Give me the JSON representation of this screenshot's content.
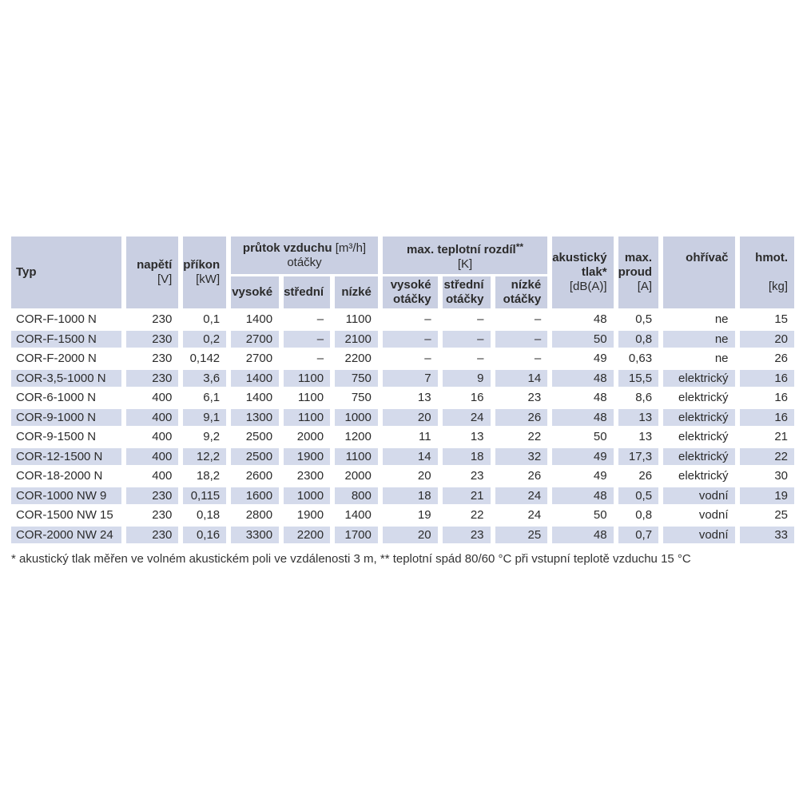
{
  "colors": {
    "header_bg": "#c9cfe2",
    "stripe_bg": "#d4daeb",
    "row_bg": "#ffffff",
    "text": "#2b2b2b"
  },
  "table": {
    "header": {
      "typ": "Typ",
      "napeti": {
        "l1": "napětí",
        "l2": "[V]"
      },
      "prikon": {
        "l1": "příkon",
        "l2": "[kW]"
      },
      "prutok": {
        "title": "průtok vzduchu",
        "unit": "[m³/h]",
        "sub": "otáčky"
      },
      "teplotni": {
        "title": "max. teplotní rozdíl",
        "stars": "**",
        "unit": "[K]"
      },
      "flow_speeds": {
        "high": "vysoké",
        "mid": "střední",
        "low": "nízké"
      },
      "temp_speeds": {
        "high": {
          "l1": "vysoké",
          "l2": "otáčky"
        },
        "mid": {
          "l1": "střední",
          "l2": "otáčky"
        },
        "low": {
          "l1": "nízké",
          "l2": "otáčky"
        }
      },
      "akusticky": {
        "l1": "akustický",
        "l2": "tlak*",
        "l3": "[dB(A)]"
      },
      "proud": {
        "l1": "max.",
        "l2": "proud",
        "l3": "[A]"
      },
      "ohrivac": "ohřívač",
      "hmot": {
        "l1": "hmot.",
        "l3": "[kg]"
      }
    },
    "rows": [
      {
        "typ": "COR-F-1000 N",
        "napeti": "230",
        "prikon": "0,1",
        "v": "1400",
        "s": "–",
        "n": "1100",
        "tv": "–",
        "ts": "–",
        "tn": "–",
        "db": "48",
        "a": "0,5",
        "heater": "ne",
        "kg": "15"
      },
      {
        "typ": "COR-F-1500 N",
        "napeti": "230",
        "prikon": "0,2",
        "v": "2700",
        "s": "–",
        "n": "2100",
        "tv": "–",
        "ts": "–",
        "tn": "–",
        "db": "50",
        "a": "0,8",
        "heater": "ne",
        "kg": "20"
      },
      {
        "typ": "COR-F-2000 N",
        "napeti": "230",
        "prikon": "0,142",
        "v": "2700",
        "s": "–",
        "n": "2200",
        "tv": "–",
        "ts": "–",
        "tn": "–",
        "db": "49",
        "a": "0,63",
        "heater": "ne",
        "kg": "26"
      },
      {
        "typ": "COR-3,5-1000 N",
        "napeti": "230",
        "prikon": "3,6",
        "v": "1400",
        "s": "1100",
        "n": "750",
        "tv": "7",
        "ts": "9",
        "tn": "14",
        "db": "48",
        "a": "15,5",
        "heater": "elektrický",
        "kg": "16"
      },
      {
        "typ": "COR-6-1000 N",
        "napeti": "400",
        "prikon": "6,1",
        "v": "1400",
        "s": "1100",
        "n": "750",
        "tv": "13",
        "ts": "16",
        "tn": "23",
        "db": "48",
        "a": "8,6",
        "heater": "elektrický",
        "kg": "16"
      },
      {
        "typ": "COR-9-1000 N",
        "napeti": "400",
        "prikon": "9,1",
        "v": "1300",
        "s": "1100",
        "n": "1000",
        "tv": "20",
        "ts": "24",
        "tn": "26",
        "db": "48",
        "a": "13",
        "heater": "elektrický",
        "kg": "16"
      },
      {
        "typ": "COR-9-1500 N",
        "napeti": "400",
        "prikon": "9,2",
        "v": "2500",
        "s": "2000",
        "n": "1200",
        "tv": "11",
        "ts": "13",
        "tn": "22",
        "db": "50",
        "a": "13",
        "heater": "elektrický",
        "kg": "21"
      },
      {
        "typ": "COR-12-1500 N",
        "napeti": "400",
        "prikon": "12,2",
        "v": "2500",
        "s": "1900",
        "n": "1100",
        "tv": "14",
        "ts": "18",
        "tn": "32",
        "db": "49",
        "a": "17,3",
        "heater": "elektrický",
        "kg": "22"
      },
      {
        "typ": "COR-18-2000 N",
        "napeti": "400",
        "prikon": "18,2",
        "v": "2600",
        "s": "2300",
        "n": "2000",
        "tv": "20",
        "ts": "23",
        "tn": "26",
        "db": "49",
        "a": "26",
        "heater": "elektrický",
        "kg": "30"
      },
      {
        "typ": "COR-1000 NW 9",
        "napeti": "230",
        "prikon": "0,115",
        "v": "1600",
        "s": "1000",
        "n": "800",
        "tv": "18",
        "ts": "21",
        "tn": "24",
        "db": "48",
        "a": "0,5",
        "heater": "vodní",
        "kg": "19"
      },
      {
        "typ": "COR-1500 NW 15",
        "napeti": "230",
        "prikon": "0,18",
        "v": "2800",
        "s": "1900",
        "n": "1400",
        "tv": "19",
        "ts": "22",
        "tn": "24",
        "db": "50",
        "a": "0,8",
        "heater": "vodní",
        "kg": "25"
      },
      {
        "typ": "COR-2000 NW 24",
        "napeti": "230",
        "prikon": "0,16",
        "v": "3300",
        "s": "2200",
        "n": "1700",
        "tv": "20",
        "ts": "23",
        "tn": "25",
        "db": "48",
        "a": "0,7",
        "heater": "vodní",
        "kg": "33"
      }
    ],
    "footnote": "* akustický tlak měřen ve volném akustickém poli ve vzdálenosti 3 m, ** teplotní spád 80/60 °C při vstupní teplotě vzduchu 15 °C"
  }
}
